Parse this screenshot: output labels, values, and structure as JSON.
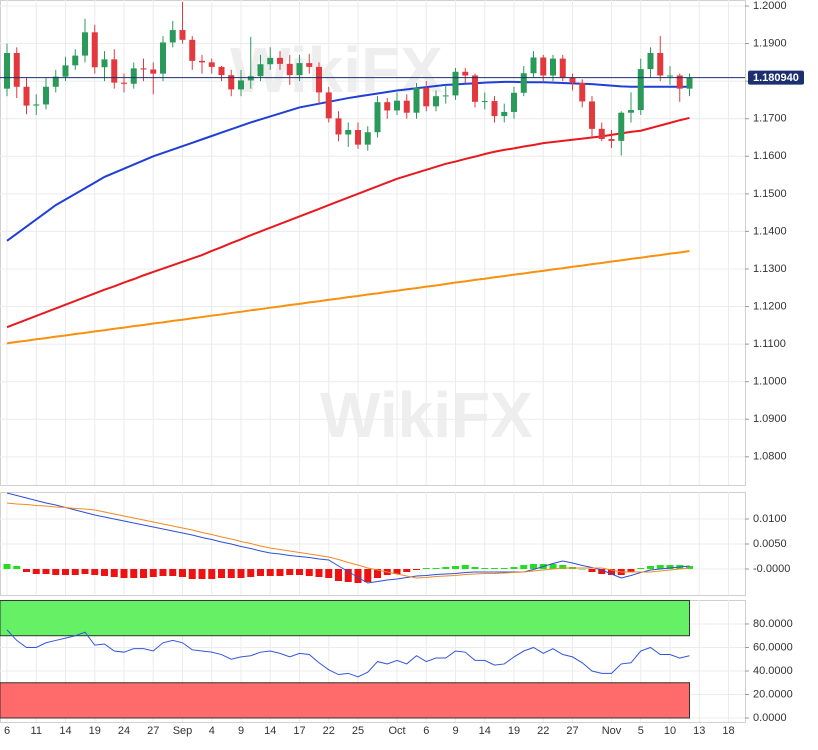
{
  "chart_data": [
    {
      "type": "candlestick",
      "watermark": "WikiFX",
      "categories": [
        "6",
        null,
        null,
        "11",
        null,
        null,
        "14",
        null,
        null,
        "19",
        null,
        null,
        "24",
        null,
        null,
        "27",
        null,
        null,
        "Sep",
        null,
        null,
        "4",
        null,
        null,
        "9",
        null,
        null,
        "14",
        null,
        null,
        "17",
        null,
        null,
        "22",
        null,
        null,
        "25",
        null,
        null,
        null,
        "Oct",
        null,
        null,
        "6",
        null,
        null,
        "9",
        null,
        null,
        "14",
        null,
        null,
        "19",
        null,
        null,
        "22",
        null,
        null,
        "27",
        null,
        null,
        null,
        "Nov",
        null,
        null,
        "5",
        null,
        null,
        "10",
        null,
        null,
        "13",
        null,
        null,
        "18",
        null
      ],
      "open": [
        1.178,
        1.1875,
        1.1785,
        1.1735,
        1.1738,
        1.1785,
        1.1812,
        1.1842,
        1.1868,
        1.193,
        1.1837,
        1.1858,
        1.1796,
        1.1793,
        1.1834,
        1.1831,
        1.182,
        1.1903,
        1.1936,
        1.191,
        1.1854,
        1.185,
        1.1838,
        1.1816,
        1.1778,
        1.1802,
        1.1813,
        1.1845,
        1.1862,
        1.1846,
        1.1816,
        1.1848,
        1.1838,
        1.177,
        1.1701,
        1.1658,
        1.167,
        1.1631,
        1.1664,
        1.1744,
        1.1722,
        1.1748,
        1.1716,
        1.1782,
        1.1733,
        1.176,
        1.1762,
        1.1825,
        1.1815,
        1.1745,
        1.1747,
        1.1707,
        1.1718,
        1.1769,
        1.1821,
        1.1863,
        1.1815,
        1.186,
        1.181,
        1.1795,
        1.1746,
        1.1673,
        1.1646,
        1.1641,
        1.1716,
        1.1723,
        1.1832,
        1.1875,
        1.1815,
        1.1815,
        1.178,
        null,
        null,
        null,
        null,
        null
      ],
      "high": [
        1.19,
        1.189,
        1.181,
        1.1765,
        1.1808,
        1.183,
        1.1865,
        1.1885,
        1.1966,
        1.195,
        1.188,
        1.1885,
        1.182,
        1.185,
        1.186,
        1.185,
        1.192,
        1.196,
        1.2011,
        1.192,
        1.187,
        1.186,
        1.184,
        1.183,
        1.183,
        1.1918,
        1.187,
        1.189,
        1.188,
        1.187,
        1.187,
        1.1872,
        1.185,
        1.1785,
        1.172,
        1.169,
        1.169,
        1.168,
        1.176,
        1.1755,
        1.177,
        1.1765,
        1.1795,
        1.18,
        1.1775,
        1.179,
        1.1835,
        1.1835,
        1.182,
        1.177,
        1.176,
        1.174,
        1.1785,
        1.184,
        1.188,
        1.187,
        1.187,
        1.187,
        1.182,
        1.1805,
        1.176,
        1.169,
        1.167,
        1.172,
        1.177,
        1.186,
        1.189,
        1.192,
        1.184,
        1.182,
        1.182,
        null,
        null,
        null,
        null,
        null
      ],
      "low": [
        1.176,
        1.1755,
        1.1712,
        1.171,
        1.1725,
        1.177,
        1.18,
        1.183,
        1.185,
        1.182,
        1.18,
        1.178,
        1.177,
        1.178,
        1.18,
        1.1765,
        1.18,
        1.189,
        1.19,
        1.183,
        1.182,
        1.182,
        1.18,
        1.176,
        1.176,
        1.178,
        1.18,
        1.183,
        1.183,
        1.179,
        1.18,
        1.182,
        1.174,
        1.169,
        1.164,
        1.1625,
        1.162,
        1.1615,
        1.165,
        1.17,
        1.171,
        1.17,
        1.17,
        1.172,
        1.172,
        1.174,
        1.175,
        1.1795,
        1.173,
        1.1725,
        1.169,
        1.169,
        1.17,
        1.176,
        1.181,
        1.18,
        1.18,
        1.18,
        1.1775,
        1.173,
        1.165,
        1.164,
        1.1622,
        1.1602,
        1.169,
        1.171,
        1.181,
        1.18,
        1.179,
        1.1745,
        1.176,
        null,
        null,
        null,
        null,
        null
      ],
      "close": [
        1.1875,
        1.1785,
        1.1735,
        1.1738,
        1.1785,
        1.1812,
        1.1842,
        1.1868,
        1.193,
        1.1837,
        1.1858,
        1.1796,
        1.1793,
        1.1834,
        1.1831,
        1.182,
        1.1903,
        1.1936,
        1.191,
        1.1854,
        1.185,
        1.1838,
        1.1816,
        1.1778,
        1.1802,
        1.1813,
        1.1845,
        1.1862,
        1.1846,
        1.1816,
        1.1848,
        1.1838,
        1.177,
        1.1701,
        1.1658,
        1.167,
        1.1631,
        1.1664,
        1.1744,
        1.1722,
        1.1748,
        1.1716,
        1.1782,
        1.1733,
        1.176,
        1.1762,
        1.1825,
        1.1815,
        1.1745,
        1.1747,
        1.1707,
        1.1718,
        1.1769,
        1.1821,
        1.1863,
        1.1815,
        1.186,
        1.181,
        1.1795,
        1.1746,
        1.1673,
        1.1646,
        1.1641,
        1.1716,
        1.1723,
        1.1832,
        1.1875,
        1.1815,
        1.1815,
        1.178,
        1.1809,
        null,
        null,
        null,
        null,
        null
      ],
      "up_color": "#2a9a5a",
      "down_color": "#e2383e",
      "series": [
        {
          "color": "#1f3fd6",
          "values": [
            1.1375,
            1.1394,
            1.1413,
            1.1432,
            1.1451,
            1.147,
            1.1485,
            1.15,
            1.1515,
            1.153,
            1.1545,
            1.1556,
            1.1567,
            1.1578,
            1.1589,
            1.16,
            1.1609,
            1.1618,
            1.1627,
            1.1636,
            1.1645,
            1.1654,
            1.1663,
            1.1672,
            1.1681,
            1.169,
            1.1698,
            1.1706,
            1.1714,
            1.1722,
            1.173,
            1.1735,
            1.174,
            1.1745,
            1.175,
            1.1755,
            1.1759,
            1.1763,
            1.1767,
            1.1771,
            1.1775,
            1.1778,
            1.1781,
            1.1784,
            1.1787,
            1.179,
            1.1791,
            1.1793,
            1.1794,
            1.1796,
            1.1797,
            1.1798,
            1.1798,
            1.1797,
            1.1797,
            1.1797,
            1.1796,
            1.1795,
            1.1794,
            1.1793,
            1.1792,
            1.179,
            1.1788,
            1.1786,
            1.1785,
            1.1785,
            1.1785,
            1.1785,
            1.1785,
            1.1785,
            1.1785,
            null,
            null,
            null,
            null,
            null
          ]
        },
        {
          "color": "#e8191e",
          "values": [
            1.1145,
            1.1155,
            1.1165,
            1.1175,
            1.1185,
            1.1195,
            1.1205,
            1.1215,
            1.1225,
            1.1235,
            1.1245,
            1.1254,
            1.1264,
            1.1273,
            1.1283,
            1.1292,
            1.1301,
            1.131,
            1.1319,
            1.1328,
            1.1337,
            1.1348,
            1.1358,
            1.1369,
            1.1379,
            1.139,
            1.14,
            1.141,
            1.142,
            1.143,
            1.144,
            1.145,
            1.146,
            1.147,
            1.148,
            1.149,
            1.15,
            1.151,
            1.152,
            1.153,
            1.154,
            1.1548,
            1.1556,
            1.1564,
            1.1572,
            1.158,
            1.1586,
            1.1593,
            1.1599,
            1.1606,
            1.1612,
            1.1617,
            1.1621,
            1.1626,
            1.163,
            1.1635,
            1.1638,
            1.1641,
            1.1644,
            1.1647,
            1.165,
            1.1653,
            1.1657,
            1.1661,
            1.1665,
            1.1668,
            1.1675,
            1.1682,
            1.1689,
            1.1696,
            1.1702,
            null,
            null,
            null,
            null,
            null
          ]
        },
        {
          "color": "#f7910f",
          "values": [
            1.1102,
            1.1106,
            1.1109,
            1.1113,
            1.1116,
            1.112,
            1.1123,
            1.1127,
            1.113,
            1.1134,
            1.1137,
            1.1141,
            1.1144,
            1.1148,
            1.1151,
            1.1155,
            1.1158,
            1.1162,
            1.1165,
            1.1169,
            1.1172,
            1.1176,
            1.1179,
            1.1183,
            1.1186,
            1.119,
            1.1193,
            1.1197,
            1.12,
            1.1204,
            1.1207,
            1.1211,
            1.1214,
            1.1218,
            1.1221,
            1.1225,
            1.1228,
            1.1232,
            1.1235,
            1.1239,
            1.1242,
            1.1246,
            1.1249,
            1.1253,
            1.1256,
            1.126,
            1.1264,
            1.1267,
            1.1271,
            1.1274,
            1.1278,
            1.1281,
            1.1285,
            1.1288,
            1.1292,
            1.1295,
            1.1299,
            1.1302,
            1.1306,
            1.1309,
            1.1313,
            1.1316,
            1.132,
            1.1323,
            1.1327,
            1.133,
            1.1334,
            1.1337,
            1.1341,
            1.1344,
            1.1348,
            null,
            null,
            null,
            null,
            null
          ]
        }
      ],
      "last_price": {
        "value": 1.18094,
        "label": "1.180940"
      },
      "last_price_color": "#1c2f6e",
      "ylim": [
        1.0725,
        1.2016
      ],
      "yticks": [
        {
          "value": 1.2,
          "label": "1.2000"
        },
        {
          "value": 1.19,
          "label": "1.1900"
        },
        {
          "value": 1.18,
          "label": "1.1800"
        },
        {
          "value": 1.17,
          "label": "1.1700"
        },
        {
          "value": 1.16,
          "label": "1.1600"
        },
        {
          "value": 1.15,
          "label": "1.1500"
        },
        {
          "value": 1.14,
          "label": "1.1400"
        },
        {
          "value": 1.13,
          "label": "1.1300"
        },
        {
          "value": 1.12,
          "label": "1.1200"
        },
        {
          "value": 1.11,
          "label": "1.1100"
        },
        {
          "value": 1.1,
          "label": "1.1000"
        },
        {
          "value": 1.09,
          "label": "1.0900"
        },
        {
          "value": 1.08,
          "label": "1.0800"
        }
      ],
      "grid": true
    },
    {
      "type": "macd",
      "series": [
        {
          "color": "#2d4fd6",
          "values": [
            0.0152,
            0.0147,
            0.0142,
            0.0137,
            0.0132,
            0.0128,
            0.0123,
            0.0118,
            0.0113,
            0.0108,
            0.0104,
            0.01,
            0.0096,
            0.0092,
            0.0088,
            0.0084,
            0.008,
            0.0076,
            0.0072,
            0.0068,
            0.0063,
            0.0059,
            0.0054,
            0.005,
            0.0045,
            0.0041,
            0.0036,
            0.0032,
            0.003,
            0.0027,
            0.0025,
            0.0023,
            0.002,
            0.0018,
            0.0006,
            -0.0005,
            -0.0017,
            -0.0028,
            -0.0025,
            -0.0022,
            -0.002,
            -0.0017,
            -0.0014,
            -0.0013,
            -0.0011,
            -0.001,
            -0.0009,
            -0.0007,
            -0.0006,
            -0.0006,
            -0.0006,
            -0.0006,
            -0.0006,
            -0.0006,
            -0.0001,
            0.0005,
            0.0011,
            0.0016,
            0.0012,
            0.0007,
            0.0003,
            -0.0002,
            -0.001,
            -0.0018,
            -0.0013,
            -0.0007,
            -0.0002,
            0,
            0.0002,
            0.0004,
            0.0006,
            null,
            null,
            null,
            null,
            null
          ]
        },
        {
          "color": "#f08a24",
          "values": [
            0.0132,
            0.013,
            0.0129,
            0.0127,
            0.0126,
            0.0124,
            0.0123,
            0.0121,
            0.012,
            0.0118,
            0.0114,
            0.011,
            0.0106,
            0.0102,
            0.0098,
            0.0094,
            0.009,
            0.0086,
            0.0082,
            0.0078,
            0.0073,
            0.0069,
            0.0064,
            0.006,
            0.0055,
            0.0051,
            0.0046,
            0.0042,
            0.0039,
            0.0036,
            0.0033,
            0.003,
            0.0027,
            0.0024,
            0.0019,
            0.0013,
            0.0008,
            0.0002,
            -0.0002,
            -0.0006,
            -0.001,
            -0.0014,
            -0.0018,
            -0.0017,
            -0.0015,
            -0.0014,
            -0.0013,
            -0.0011,
            -0.001,
            -0.0009,
            -0.0009,
            -0.0008,
            -0.0007,
            -0.0006,
            -0.0004,
            -0.0002,
            0,
            0.0002,
            0.0002,
            0.0002,
            0.0002,
            0.0002,
            -0.0002,
            -0.0006,
            -0.0006,
            -0.0006,
            -0.0006,
            -0.0004,
            -0.0002,
            0,
            0.0002,
            null,
            null,
            null,
            null,
            null
          ]
        }
      ],
      "histogram": {
        "up_color": "#22dd22",
        "down_color": "#ee1111",
        "values": [
          0.001,
          0.0006,
          -0.0006,
          -0.001,
          -0.001,
          -0.0012,
          -0.0012,
          -0.0012,
          -0.001,
          -0.0012,
          -0.0014,
          -0.0016,
          -0.0018,
          -0.0018,
          -0.0018,
          -0.0016,
          -0.0014,
          -0.0014,
          -0.0016,
          -0.002,
          -0.002,
          -0.002,
          -0.0018,
          -0.0018,
          -0.0018,
          -0.0016,
          -0.0014,
          -0.0014,
          -0.0014,
          -0.0012,
          -0.0012,
          -0.0014,
          -0.0016,
          -0.0018,
          -0.0024,
          -0.0026,
          -0.0028,
          -0.0026,
          -0.0018,
          -0.0012,
          -0.001,
          -0.0006,
          -0.0002,
          0.0002,
          0.0002,
          0.0004,
          0.0006,
          0.0008,
          0.0004,
          0.0002,
          0.0002,
          0.0002,
          0.0004,
          0.0008,
          0.001,
          0.001,
          0.001,
          0.0008,
          0.0004,
          0,
          -0.0006,
          -0.001,
          -0.0012,
          -0.0012,
          -0.0006,
          0.0002,
          0.0006,
          0.0008,
          0.0008,
          0.0008,
          0.0006,
          null,
          null,
          null,
          null,
          null
        ]
      },
      "ylim": [
        -0.0052,
        0.0154
      ],
      "yticks": [
        {
          "value": 0.01,
          "label": "0.0100"
        },
        {
          "value": 0.005,
          "label": "0.0050"
        },
        {
          "value": 0,
          "label": "-0.0000"
        }
      ]
    },
    {
      "type": "rsi",
      "series": [
        {
          "color": "#3355dd",
          "values": [
            75,
            66,
            60,
            60,
            64,
            66,
            68,
            70,
            73,
            62,
            63,
            57,
            56,
            59,
            59,
            57,
            64,
            66,
            64,
            58,
            57,
            56,
            54,
            50,
            52,
            53,
            56,
            57,
            55,
            52,
            55,
            54,
            47,
            41,
            37,
            38,
            35,
            39,
            48,
            46,
            49,
            46,
            53,
            48,
            51,
            51,
            57,
            56,
            49,
            49,
            45,
            46,
            52,
            57,
            60,
            55,
            59,
            54,
            52,
            47,
            40,
            38,
            38,
            46,
            47,
            57,
            60,
            54,
            54,
            51,
            53,
            null,
            null,
            null,
            null,
            null
          ]
        }
      ],
      "overbought": [
        70,
        100
      ],
      "overbought_color": "#66f066",
      "oversold": [
        0,
        30
      ],
      "oversold_color": "#ff6b6b",
      "ylim": [
        -3.4,
        100.4
      ],
      "yticks": [
        {
          "value": 80,
          "label": "80.0000"
        },
        {
          "value": 60,
          "label": "60.0000"
        },
        {
          "value": 40,
          "label": "40.0000"
        },
        {
          "value": 20,
          "label": "20.0000"
        },
        {
          "value": 0,
          "label": "0.0000"
        }
      ]
    }
  ]
}
